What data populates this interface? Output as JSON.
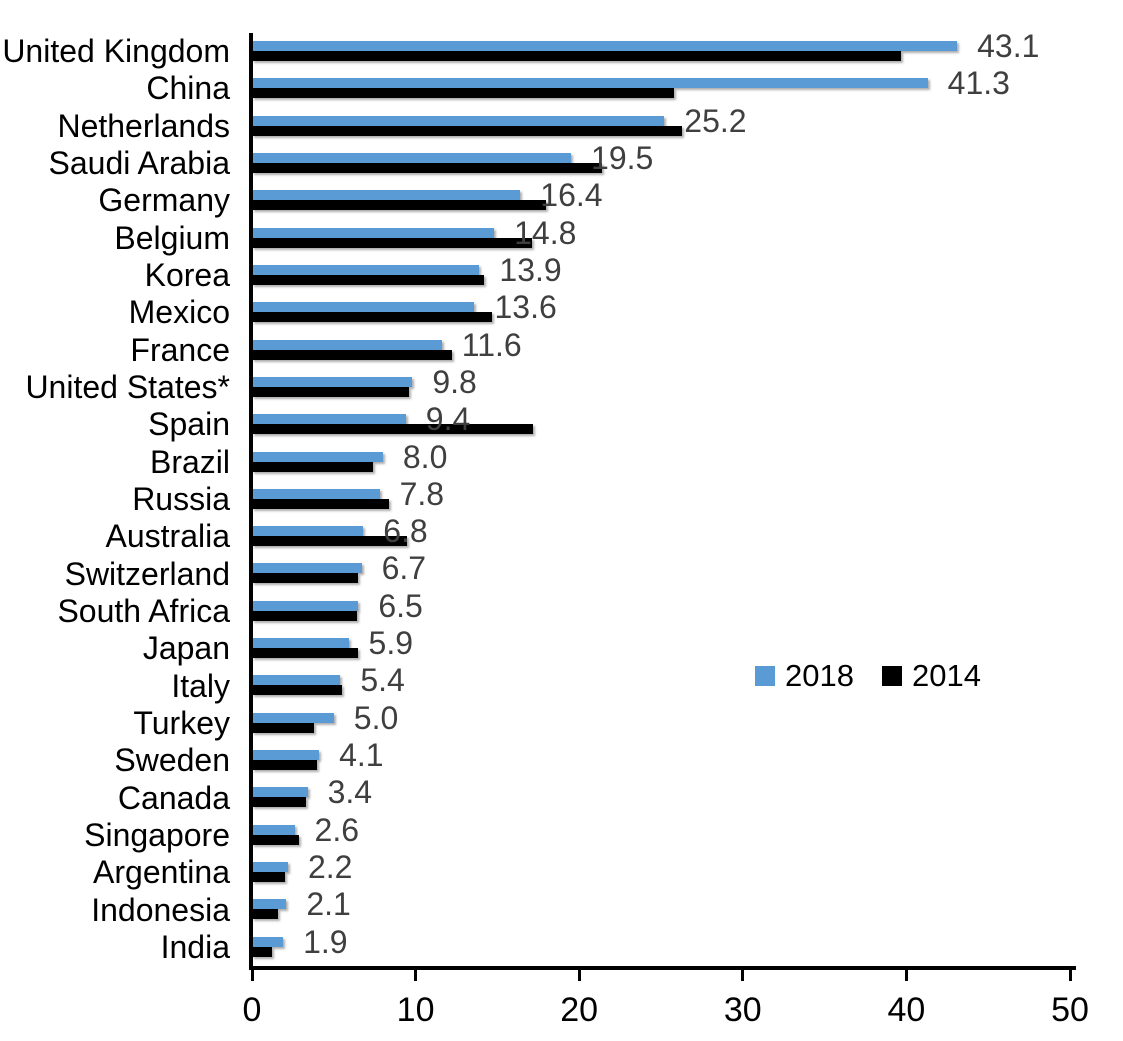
{
  "chart_data": {
    "type": "bar",
    "orientation": "horizontal",
    "title": "",
    "xlabel": "",
    "ylabel": "",
    "xlim": [
      0,
      50
    ],
    "x_ticks": [
      0,
      10,
      20,
      30,
      40,
      50
    ],
    "grid": false,
    "legend_position": "middle-right",
    "value_label_series": "2018",
    "value_label_color": "#3F3F3F",
    "categories": [
      "United Kingdom",
      "China",
      "Netherlands",
      "Saudi Arabia",
      "Germany",
      "Belgium",
      "Korea",
      "Mexico",
      "France",
      "United States*",
      "Spain",
      "Brazil",
      "Russia",
      "Australia",
      "Switzerland",
      "South Africa",
      "Japan",
      "Italy",
      "Turkey",
      "Sweden",
      "Canada",
      "Singapore",
      "Argentina",
      "Indonesia",
      "India"
    ],
    "series": [
      {
        "name": "2018",
        "color": "#5B9BD5",
        "values": [
          43.1,
          41.3,
          25.2,
          19.5,
          16.4,
          14.8,
          13.9,
          13.6,
          11.6,
          9.8,
          9.4,
          8.0,
          7.8,
          6.8,
          6.7,
          6.5,
          5.9,
          5.4,
          5.0,
          4.1,
          3.4,
          2.6,
          2.2,
          2.1,
          1.9
        ]
      },
      {
        "name": "2014",
        "color": "#000000",
        "values": [
          39.7,
          25.8,
          26.3,
          21.4,
          18.0,
          17.1,
          14.2,
          14.7,
          12.2,
          9.6,
          17.2,
          7.4,
          8.4,
          9.5,
          6.5,
          6.4,
          6.5,
          5.5,
          3.8,
          4.0,
          3.3,
          2.9,
          2.0,
          1.6,
          1.2
        ]
      }
    ]
  }
}
